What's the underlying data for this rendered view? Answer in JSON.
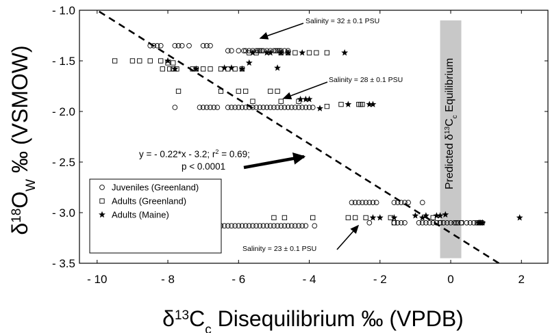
{
  "chart_data": {
    "type": "scatter",
    "xlim": [
      -10.5,
      2.75
    ],
    "ylim": [
      -3.5,
      -1.0
    ],
    "y_reversed": true,
    "x_ticks": [
      -10,
      -8,
      -6,
      -4,
      -2,
      0,
      2
    ],
    "x_tick_labels": [
      "- 10",
      "- 8",
      "- 6",
      "- 4",
      "- 2",
      "0",
      "2"
    ],
    "y_ticks": [
      -1.0,
      -1.5,
      -2.0,
      -2.5,
      -3.0,
      -3.5
    ],
    "y_tick_labels": [
      "- 1.0",
      "- 1.5",
      "- 2.0",
      "- 2.5",
      "- 3.0",
      "- 3.5"
    ],
    "xlabel": {
      "pre": "δ",
      "sup": "13",
      "mid": "C",
      "sub": "c",
      "post": " Disequilibrium ‰ (VPDB)"
    },
    "ylabel": {
      "pre": "δ",
      "sup": "18",
      "mid": "O",
      "sub": "W",
      "post": " ‰ (VSMOW)"
    },
    "grid": false,
    "legend_position": "lower-left",
    "equilibrium_band": {
      "x_range": [
        -0.3,
        0.3
      ],
      "y_range": [
        -1.1,
        -3.45
      ],
      "color": "#c8c8c8",
      "label": {
        "pre": "Predicted δ",
        "sup": "13",
        "mid": "C",
        "sub": "c",
        "post": " Equilibrium"
      }
    },
    "regression": {
      "slope": -0.22,
      "intercept": -3.2,
      "equation_line1": "y = - 0.22*x - 3.2; r",
      "equation_r2_sup": "2",
      "equation_line1_end": " = 0.69;",
      "equation_line2": "p < 0.0001"
    },
    "annotations": [
      {
        "text": "Salinity = 32 ± 0.1 PSU",
        "x": -2.3,
        "y": -1.18
      },
      {
        "text": "Salinity = 28 ± 0.1 PSU",
        "x": -1.6,
        "y": -1.76
      },
      {
        "text": "Salinity = 23 ± 0.1 PSU",
        "x": -5.8,
        "y": -3.42
      }
    ],
    "series": [
      {
        "name": "Juveniles (Greenland)",
        "marker": "circle",
        "points": [
          [
            -8.5,
            -1.35
          ],
          [
            -8.4,
            -1.35
          ],
          [
            -8.3,
            -1.35
          ],
          [
            -8.2,
            -1.35
          ],
          [
            -7.8,
            -1.35
          ],
          [
            -7.7,
            -1.35
          ],
          [
            -7.6,
            -1.35
          ],
          [
            -7.4,
            -1.35
          ],
          [
            -7.0,
            -1.35
          ],
          [
            -6.9,
            -1.35
          ],
          [
            -6.8,
            -1.35
          ],
          [
            -6.3,
            -1.4
          ],
          [
            -6.2,
            -1.4
          ],
          [
            -6.0,
            -1.4
          ],
          [
            -5.85,
            -1.4
          ],
          [
            -5.8,
            -1.4
          ],
          [
            -5.7,
            -1.4
          ],
          [
            -5.6,
            -1.4
          ],
          [
            -5.5,
            -1.4
          ],
          [
            -5.45,
            -1.4
          ],
          [
            -5.4,
            -1.4
          ],
          [
            -5.35,
            -1.4
          ],
          [
            -5.3,
            -1.4
          ],
          [
            -5.2,
            -1.4
          ],
          [
            -5.1,
            -1.4
          ],
          [
            -5.0,
            -1.4
          ],
          [
            -4.95,
            -1.4
          ],
          [
            -4.9,
            -1.4
          ],
          [
            -4.85,
            -1.4
          ],
          [
            -4.8,
            -1.4
          ],
          [
            -4.7,
            -1.4
          ],
          [
            -4.6,
            -1.4
          ],
          [
            -7.8,
            -1.96
          ],
          [
            -7.1,
            -1.96
          ],
          [
            -7.0,
            -1.96
          ],
          [
            -6.9,
            -1.96
          ],
          [
            -6.8,
            -1.96
          ],
          [
            -6.7,
            -1.96
          ],
          [
            -6.6,
            -1.96
          ],
          [
            -6.3,
            -1.96
          ],
          [
            -6.2,
            -1.96
          ],
          [
            -6.1,
            -1.96
          ],
          [
            -6.0,
            -1.96
          ],
          [
            -5.9,
            -1.96
          ],
          [
            -5.8,
            -1.96
          ],
          [
            -5.7,
            -1.96
          ],
          [
            -5.6,
            -1.96
          ],
          [
            -5.5,
            -1.96
          ],
          [
            -5.4,
            -1.96
          ],
          [
            -5.3,
            -1.96
          ],
          [
            -5.2,
            -1.96
          ],
          [
            -5.1,
            -1.96
          ],
          [
            -5.0,
            -1.96
          ],
          [
            -4.9,
            -1.96
          ],
          [
            -4.8,
            -1.96
          ],
          [
            -4.7,
            -1.96
          ],
          [
            -4.6,
            -1.96
          ],
          [
            -4.5,
            -1.96
          ],
          [
            -4.4,
            -1.96
          ],
          [
            -4.3,
            -1.96
          ],
          [
            -4.2,
            -1.96
          ],
          [
            -4.1,
            -1.96
          ],
          [
            -4.0,
            -1.96
          ],
          [
            -3.9,
            -1.96
          ],
          [
            -8.2,
            -3.13
          ],
          [
            -7.6,
            -3.13
          ],
          [
            -7.5,
            -3.13
          ],
          [
            -7.4,
            -3.13
          ],
          [
            -7.3,
            -3.13
          ],
          [
            -7.0,
            -3.13
          ],
          [
            -6.9,
            -3.13
          ],
          [
            -6.8,
            -3.13
          ],
          [
            -6.7,
            -3.13
          ],
          [
            -6.6,
            -3.13
          ],
          [
            -6.5,
            -3.13
          ],
          [
            -6.4,
            -3.13
          ],
          [
            -6.3,
            -3.13
          ],
          [
            -6.2,
            -3.13
          ],
          [
            -6.1,
            -3.13
          ],
          [
            -6.0,
            -3.13
          ],
          [
            -5.9,
            -3.13
          ],
          [
            -5.8,
            -3.13
          ],
          [
            -5.7,
            -3.13
          ],
          [
            -5.6,
            -3.13
          ],
          [
            -5.5,
            -3.13
          ],
          [
            -5.4,
            -3.13
          ],
          [
            -5.3,
            -3.13
          ],
          [
            -5.2,
            -3.13
          ],
          [
            -5.1,
            -3.13
          ],
          [
            -5.0,
            -3.13
          ],
          [
            -4.9,
            -3.13
          ],
          [
            -4.8,
            -3.13
          ],
          [
            -4.7,
            -3.13
          ],
          [
            -4.6,
            -3.13
          ],
          [
            -4.5,
            -3.13
          ],
          [
            -4.4,
            -3.13
          ],
          [
            -4.3,
            -3.13
          ],
          [
            -4.2,
            -3.13
          ],
          [
            -4.1,
            -3.13
          ],
          [
            -3.85,
            -3.13
          ],
          [
            -2.8,
            -2.9
          ],
          [
            -2.7,
            -2.9
          ],
          [
            -2.6,
            -2.9
          ],
          [
            -2.5,
            -2.9
          ],
          [
            -2.4,
            -2.9
          ],
          [
            -2.3,
            -2.9
          ],
          [
            -2.2,
            -2.9
          ],
          [
            -2.1,
            -2.9
          ],
          [
            -1.6,
            -2.9
          ],
          [
            -1.5,
            -2.9
          ],
          [
            -1.4,
            -2.9
          ],
          [
            -1.3,
            -2.9
          ],
          [
            -1.2,
            -2.9
          ],
          [
            -0.8,
            -2.9
          ],
          [
            -2.3,
            -3.1
          ],
          [
            -1.6,
            -3.1
          ],
          [
            -1.5,
            -3.1
          ],
          [
            -1.4,
            -3.1
          ],
          [
            -1.3,
            -3.1
          ],
          [
            -0.9,
            -3.1
          ],
          [
            -0.8,
            -3.1
          ],
          [
            -0.7,
            -3.1
          ],
          [
            -0.6,
            -3.1
          ],
          [
            -0.5,
            -3.1
          ],
          [
            -0.4,
            -3.1
          ],
          [
            -0.3,
            -3.1
          ],
          [
            -0.2,
            -3.1
          ],
          [
            -0.1,
            -3.1
          ],
          [
            0.0,
            -3.1
          ],
          [
            0.1,
            -3.1
          ],
          [
            0.15,
            -3.1
          ],
          [
            0.2,
            -3.1
          ],
          [
            0.3,
            -3.1
          ],
          [
            0.45,
            -3.1
          ],
          [
            0.55,
            -3.1
          ],
          [
            0.65,
            -3.1
          ],
          [
            0.8,
            -3.1
          ],
          [
            0.9,
            -3.1
          ]
        ]
      },
      {
        "name": "Adults (Greenland)",
        "marker": "square",
        "points": [
          [
            -9.5,
            -1.5
          ],
          [
            -9.0,
            -1.5
          ],
          [
            -8.8,
            -1.5
          ],
          [
            -8.5,
            -1.5
          ],
          [
            -8.2,
            -1.5
          ],
          [
            -8.15,
            -1.58
          ],
          [
            -7.95,
            -1.58
          ],
          [
            -7.85,
            -1.58
          ],
          [
            -7.75,
            -1.58
          ],
          [
            -7.3,
            -1.58
          ],
          [
            -7.2,
            -1.58
          ],
          [
            -7.0,
            -1.58
          ],
          [
            -6.8,
            -1.58
          ],
          [
            -6.5,
            -1.58
          ],
          [
            -6.3,
            -1.58
          ],
          [
            -6.1,
            -1.58
          ],
          [
            -5.9,
            -1.58
          ],
          [
            -7.85,
            -1.52
          ],
          [
            -8.0,
            -1.52
          ],
          [
            -5.7,
            -1.42
          ],
          [
            -5.5,
            -1.42
          ],
          [
            -4.8,
            -1.42
          ],
          [
            -4.6,
            -1.42
          ],
          [
            -4.4,
            -1.42
          ],
          [
            -4.0,
            -1.42
          ],
          [
            -3.8,
            -1.42
          ],
          [
            -3.5,
            -1.42
          ],
          [
            -7.7,
            -1.8
          ],
          [
            -6.5,
            -1.8
          ],
          [
            -6.0,
            -1.8
          ],
          [
            -5.8,
            -1.8
          ],
          [
            -5.1,
            -1.8
          ],
          [
            -4.9,
            -1.8
          ],
          [
            -5.6,
            -1.9
          ],
          [
            -4.8,
            -1.9
          ],
          [
            -4.3,
            -1.9
          ],
          [
            -3.5,
            -1.95
          ],
          [
            -3.1,
            -1.93
          ],
          [
            -2.6,
            -1.93
          ],
          [
            -2.55,
            -1.93
          ],
          [
            -2.5,
            -1.93
          ],
          [
            -5.0,
            -3.05
          ],
          [
            -4.7,
            -3.05
          ],
          [
            -3.9,
            -3.05
          ],
          [
            -2.9,
            -3.05
          ],
          [
            -2.7,
            -3.05
          ],
          [
            -2.4,
            -3.05
          ],
          [
            -1.7,
            -3.05
          ],
          [
            -0.5,
            -3.05
          ],
          [
            -1.6,
            -3.1
          ],
          [
            -0.3,
            -3.1
          ],
          [
            0.3,
            -3.1
          ],
          [
            0.75,
            -3.1
          ],
          [
            0.8,
            -3.1
          ],
          [
            0.85,
            -3.1
          ]
        ]
      },
      {
        "name": "Adults (Maine)",
        "marker": "star",
        "points": [
          [
            -8.0,
            -1.5
          ],
          [
            -7.8,
            -1.58
          ],
          [
            -7.2,
            -1.58
          ],
          [
            -6.4,
            -1.57
          ],
          [
            -6.2,
            -1.57
          ],
          [
            -5.9,
            -1.58
          ],
          [
            -5.7,
            -1.52
          ],
          [
            -4.9,
            -1.57
          ],
          [
            -5.6,
            -1.42
          ],
          [
            -5.2,
            -1.42
          ],
          [
            -5.1,
            -1.42
          ],
          [
            -4.8,
            -1.42
          ],
          [
            -4.6,
            -1.42
          ],
          [
            -4.2,
            -1.42
          ],
          [
            -3.0,
            -1.42
          ],
          [
            -4.25,
            -1.88
          ],
          [
            -4.1,
            -1.88
          ],
          [
            -4.0,
            -1.88
          ],
          [
            -3.7,
            -1.97
          ],
          [
            -2.9,
            -1.93
          ],
          [
            -2.3,
            -1.93
          ],
          [
            -2.2,
            -1.93
          ],
          [
            -2.2,
            -3.05
          ],
          [
            -2.0,
            -3.05
          ],
          [
            -1.6,
            -3.05
          ],
          [
            -1.0,
            -3.03
          ],
          [
            -0.8,
            -3.05
          ],
          [
            -0.7,
            -3.03
          ],
          [
            -0.4,
            -3.03
          ],
          [
            -0.3,
            -3.03
          ],
          [
            -0.15,
            -3.02
          ],
          [
            0.8,
            -3.1
          ],
          [
            0.85,
            -3.1
          ],
          [
            0.9,
            -3.1
          ],
          [
            1.95,
            -3.05
          ]
        ]
      }
    ]
  }
}
